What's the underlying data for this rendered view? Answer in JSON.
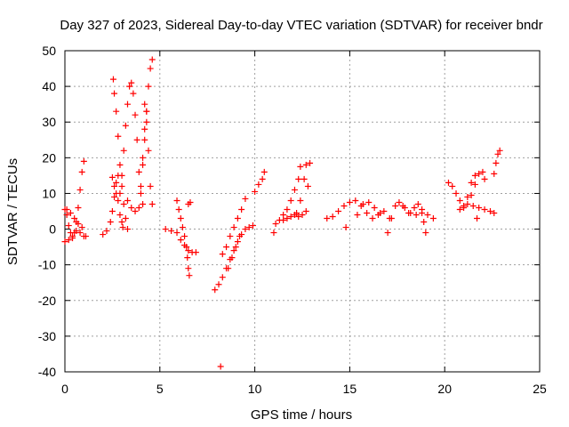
{
  "chart_data": {
    "type": "scatter",
    "title": "Day 327 of 2023, Sidereal Day-to-day VTEC variation (SDTVAR) for receiver bndr",
    "xlabel": "GPS time / hours",
    "ylabel": "SDTVAR / TECUs",
    "xlim": [
      0,
      25
    ],
    "ylim": [
      -40,
      50
    ],
    "x_ticks": [
      0,
      5,
      10,
      15,
      20,
      25
    ],
    "y_ticks": [
      -40,
      -30,
      -20,
      -10,
      0,
      10,
      20,
      30,
      40,
      50
    ],
    "grid": true,
    "marker": "+",
    "color": "#ff0000",
    "series": [
      {
        "points": [
          [
            0.0,
            5.5
          ],
          [
            0.1,
            4.0
          ],
          [
            0.2,
            1.0
          ],
          [
            0.3,
            -1.0
          ],
          [
            0.4,
            -2.5
          ],
          [
            0.5,
            -1.0
          ],
          [
            0.6,
            2.0
          ],
          [
            0.7,
            6.0
          ],
          [
            0.8,
            11.0
          ],
          [
            0.9,
            16.0
          ],
          [
            1.0,
            19.0
          ],
          [
            0.0,
            -3.5
          ],
          [
            0.2,
            -3.0
          ],
          [
            0.4,
            -2.0
          ],
          [
            0.6,
            -0.5
          ],
          [
            0.8,
            -1.0
          ],
          [
            1.0,
            -2.0
          ],
          [
            1.1,
            -2.0
          ],
          [
            0.1,
            5.5
          ],
          [
            0.3,
            4.5
          ],
          [
            0.5,
            3.0
          ],
          [
            0.7,
            1.5
          ],
          [
            0.9,
            0.5
          ],
          [
            2.0,
            -1.5
          ],
          [
            2.2,
            -0.5
          ],
          [
            2.4,
            2.0
          ],
          [
            2.5,
            5.0
          ],
          [
            2.6,
            9.0
          ],
          [
            2.7,
            13.0
          ],
          [
            2.8,
            15.0
          ],
          [
            2.5,
            14.5
          ],
          [
            2.6,
            12.0
          ],
          [
            2.7,
            10.0
          ],
          [
            2.8,
            8.0
          ],
          [
            2.9,
            4.0
          ],
          [
            3.0,
            2.0
          ],
          [
            3.05,
            0.5
          ],
          [
            2.55,
            42.0
          ],
          [
            2.6,
            38.0
          ],
          [
            2.7,
            33.0
          ],
          [
            2.8,
            26.0
          ],
          [
            2.9,
            18.0
          ],
          [
            3.0,
            12.0
          ],
          [
            3.1,
            7.0
          ],
          [
            3.2,
            3.0
          ],
          [
            3.3,
            0.0
          ],
          [
            2.9,
            10.0
          ],
          [
            3.0,
            15.0
          ],
          [
            3.1,
            22.0
          ],
          [
            3.2,
            29.0
          ],
          [
            3.3,
            35.0
          ],
          [
            3.4,
            40.0
          ],
          [
            3.5,
            41.0
          ],
          [
            3.6,
            38.0
          ],
          [
            3.7,
            32.0
          ],
          [
            3.8,
            25.0
          ],
          [
            3.9,
            16.0
          ],
          [
            4.0,
            10.0
          ],
          [
            4.1,
            7.0
          ],
          [
            3.3,
            8.0
          ],
          [
            3.5,
            6.0
          ],
          [
            3.7,
            5.0
          ],
          [
            3.9,
            6.0
          ],
          [
            4.0,
            12.0
          ],
          [
            4.1,
            20.0
          ],
          [
            4.2,
            28.0
          ],
          [
            4.3,
            33.0
          ],
          [
            4.2,
            35.0
          ],
          [
            4.3,
            30.0
          ],
          [
            4.4,
            22.0
          ],
          [
            4.5,
            12.0
          ],
          [
            4.6,
            7.0
          ],
          [
            4.1,
            18.0
          ],
          [
            4.2,
            25.0
          ],
          [
            4.3,
            33.0
          ],
          [
            4.4,
            40.0
          ],
          [
            4.5,
            45.0
          ],
          [
            4.6,
            47.5
          ],
          [
            5.3,
            0.0
          ],
          [
            5.6,
            -0.5
          ],
          [
            5.9,
            -1.0
          ],
          [
            6.1,
            -3.0
          ],
          [
            6.3,
            -4.5
          ],
          [
            6.5,
            -6.0
          ],
          [
            6.7,
            -6.5
          ],
          [
            6.9,
            -6.5
          ],
          [
            5.9,
            8.0
          ],
          [
            6.0,
            5.5
          ],
          [
            6.1,
            3.0
          ],
          [
            6.2,
            0.5
          ],
          [
            6.3,
            -2.0
          ],
          [
            6.4,
            -5.0
          ],
          [
            6.45,
            -8.0
          ],
          [
            6.5,
            -11.0
          ],
          [
            6.55,
            -13.0
          ],
          [
            6.5,
            7.0
          ],
          [
            6.6,
            7.5
          ],
          [
            7.9,
            -17.0
          ],
          [
            8.1,
            -15.5
          ],
          [
            8.3,
            -13.5
          ],
          [
            8.5,
            -11.0
          ],
          [
            8.7,
            -8.5
          ],
          [
            8.9,
            -6.0
          ],
          [
            9.1,
            -3.5
          ],
          [
            9.3,
            -1.5
          ],
          [
            9.5,
            0.0
          ],
          [
            9.7,
            0.5
          ],
          [
            9.9,
            1.0
          ],
          [
            8.3,
            -7.0
          ],
          [
            8.5,
            -5.0
          ],
          [
            8.7,
            -2.0
          ],
          [
            8.9,
            0.5
          ],
          [
            9.1,
            3.0
          ],
          [
            9.3,
            5.5
          ],
          [
            9.5,
            8.5
          ],
          [
            8.6,
            -11.0
          ],
          [
            8.8,
            -8.0
          ],
          [
            9.0,
            -5.0
          ],
          [
            9.2,
            -2.0
          ],
          [
            8.2,
            -38.5
          ],
          [
            10.0,
            10.5
          ],
          [
            10.2,
            12.5
          ],
          [
            10.4,
            14.0
          ],
          [
            10.5,
            16.0
          ],
          [
            11.0,
            -1.0
          ],
          [
            11.1,
            1.5
          ],
          [
            11.3,
            2.5
          ],
          [
            11.5,
            4.0
          ],
          [
            11.7,
            5.5
          ],
          [
            11.9,
            8.0
          ],
          [
            12.1,
            11.0
          ],
          [
            12.3,
            14.0
          ],
          [
            12.4,
            17.5
          ],
          [
            11.5,
            2.5
          ],
          [
            11.7,
            3.0
          ],
          [
            11.9,
            3.5
          ],
          [
            12.1,
            4.0
          ],
          [
            12.3,
            3.5
          ],
          [
            12.5,
            4.0
          ],
          [
            12.7,
            5.0
          ],
          [
            12.8,
            12.0
          ],
          [
            12.9,
            18.5
          ],
          [
            12.2,
            4.5
          ],
          [
            12.4,
            8.0
          ],
          [
            12.6,
            14.0
          ],
          [
            12.7,
            18.0
          ],
          [
            13.8,
            3.0
          ],
          [
            14.1,
            3.5
          ],
          [
            14.4,
            5.0
          ],
          [
            14.7,
            6.5
          ],
          [
            15.0,
            7.5
          ],
          [
            15.3,
            8.0
          ],
          [
            15.6,
            6.5
          ],
          [
            15.9,
            4.5
          ],
          [
            16.2,
            3.0
          ],
          [
            16.5,
            4.0
          ],
          [
            16.8,
            5.0
          ],
          [
            17.1,
            3.0
          ],
          [
            14.8,
            0.5
          ],
          [
            15.4,
            4.0
          ],
          [
            15.7,
            7.0
          ],
          [
            16.0,
            7.5
          ],
          [
            16.3,
            6.0
          ],
          [
            16.6,
            4.5
          ],
          [
            17.0,
            -1.0
          ],
          [
            17.2,
            3.0
          ],
          [
            17.4,
            6.5
          ],
          [
            17.6,
            7.5
          ],
          [
            17.9,
            6.0
          ],
          [
            18.2,
            4.5
          ],
          [
            18.5,
            4.0
          ],
          [
            18.8,
            4.5
          ],
          [
            19.1,
            4.0
          ],
          [
            19.4,
            3.0
          ],
          [
            17.8,
            6.5
          ],
          [
            18.1,
            4.5
          ],
          [
            18.4,
            6.0
          ],
          [
            18.6,
            7.0
          ],
          [
            18.8,
            5.5
          ],
          [
            18.9,
            2.0
          ],
          [
            19.0,
            -1.0
          ],
          [
            20.2,
            13.0
          ],
          [
            20.4,
            12.0
          ],
          [
            20.6,
            10.0
          ],
          [
            20.8,
            8.0
          ],
          [
            21.0,
            6.5
          ],
          [
            21.2,
            7.0
          ],
          [
            21.4,
            9.5
          ],
          [
            21.6,
            12.5
          ],
          [
            21.8,
            15.5
          ],
          [
            22.0,
            16.0
          ],
          [
            22.1,
            14.0
          ],
          [
            20.8,
            5.5
          ],
          [
            21.0,
            6.0
          ],
          [
            21.2,
            9.0
          ],
          [
            21.4,
            13.0
          ],
          [
            21.6,
            15.0
          ],
          [
            21.5,
            6.5
          ],
          [
            21.8,
            6.0
          ],
          [
            22.1,
            5.5
          ],
          [
            22.4,
            5.0
          ],
          [
            22.6,
            4.5
          ],
          [
            21.7,
            3.0
          ],
          [
            22.6,
            15.5
          ],
          [
            22.7,
            18.5
          ],
          [
            22.8,
            21.0
          ],
          [
            22.9,
            22.0
          ]
        ]
      }
    ]
  }
}
